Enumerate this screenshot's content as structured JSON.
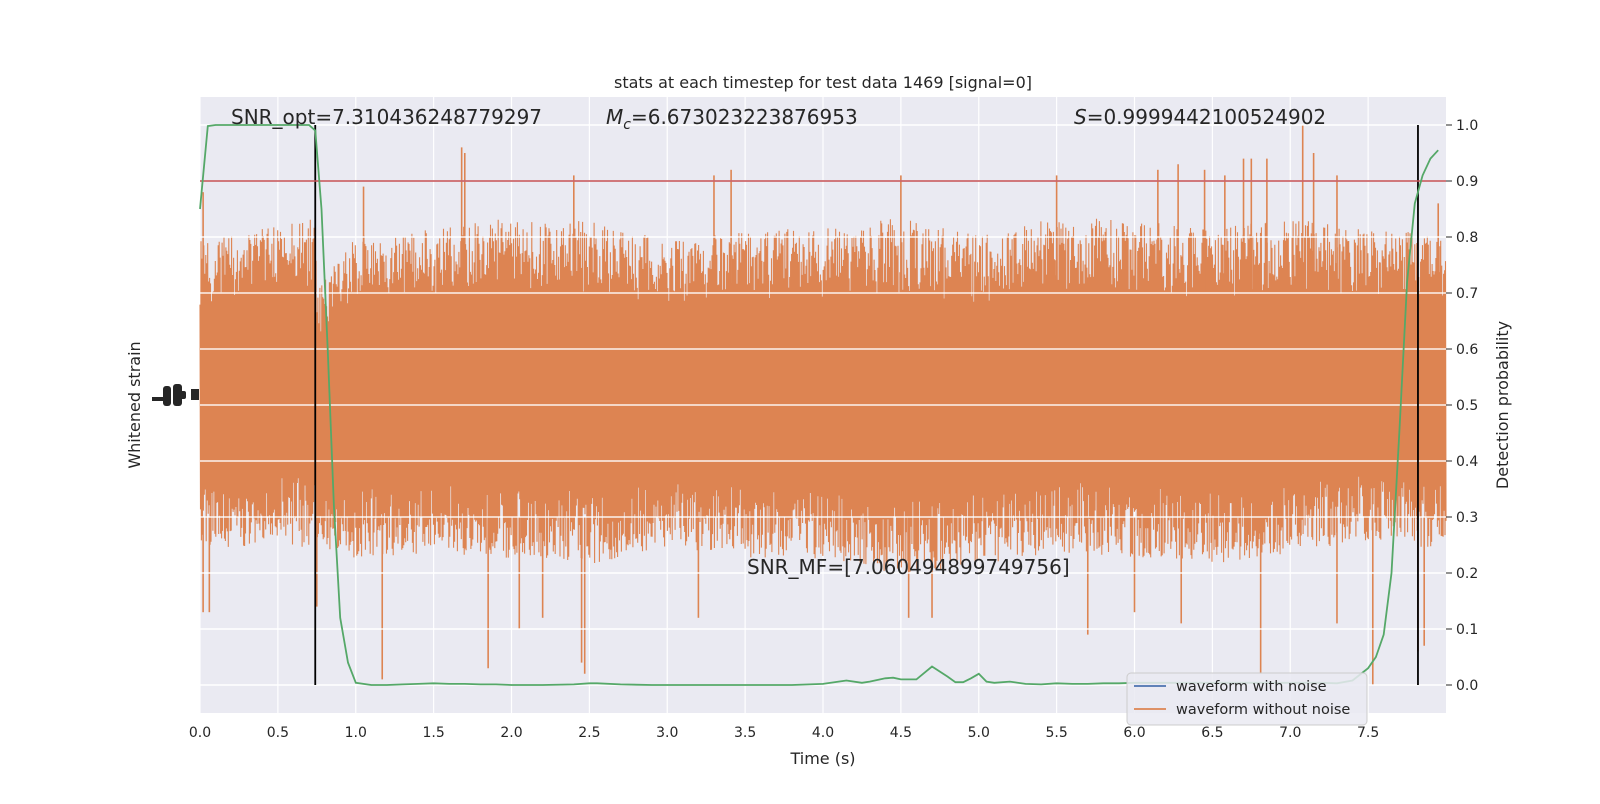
{
  "chart_data": {
    "type": "line",
    "title": "stats at each timestep for test data 1469 [signal=0]",
    "xlabel": "Time (s)",
    "ylabel_left": "Whitened strain",
    "ylabel_right": "Detection probability",
    "xlim": [
      0.0,
      8.0
    ],
    "ylim_right": [
      -0.05,
      1.05
    ],
    "x_ticks": [
      "0.0",
      "0.5",
      "1.0",
      "1.5",
      "2.0",
      "2.5",
      "3.0",
      "3.5",
      "4.0",
      "4.5",
      "5.0",
      "5.5",
      "6.0",
      "6.5",
      "7.0",
      "7.5"
    ],
    "y_ticks_right": [
      "0.0",
      "0.1",
      "0.2",
      "0.3",
      "0.4",
      "0.5",
      "0.6",
      "0.7",
      "0.8",
      "0.9",
      "1.0"
    ],
    "grid": true,
    "legend_position": "lower-right",
    "annotations": {
      "snr_opt": "SNR_opt=7.310436248779297",
      "mc_symbol": "M",
      "mc_sub": "c",
      "mc_value": "=6.673023223876953",
      "s_symbol": "S",
      "s_value": "=0.9999442100524902",
      "snr_mf": "SNR_MF=[7.060494899749756]"
    },
    "threshold": {
      "y": 0.9,
      "color": "#c44e52"
    },
    "vertical_markers": [
      0.74,
      7.82
    ],
    "series": [
      {
        "name": "waveform with noise",
        "color": "#4c72b0",
        "kind": "strain"
      },
      {
        "name": "waveform without noise",
        "color": "#dd8452",
        "kind": "strain",
        "envelope_upper": [
          [
            0.0,
            0.78
          ],
          [
            0.74,
            0.82
          ],
          [
            0.75,
            0.7
          ],
          [
            1.0,
            0.79
          ],
          [
            1.5,
            0.8
          ],
          [
            2.0,
            0.82
          ],
          [
            2.5,
            0.82
          ],
          [
            3.0,
            0.78
          ],
          [
            3.5,
            0.8
          ],
          [
            4.0,
            0.8
          ],
          [
            4.5,
            0.82
          ],
          [
            5.0,
            0.79
          ],
          [
            5.5,
            0.82
          ],
          [
            6.0,
            0.82
          ],
          [
            6.5,
            0.8
          ],
          [
            7.0,
            0.82
          ],
          [
            7.5,
            0.8
          ],
          [
            8.0,
            0.8
          ]
        ],
        "envelope_lower": [
          [
            0.0,
            0.25
          ],
          [
            0.5,
            0.27
          ],
          [
            1.0,
            0.24
          ],
          [
            1.5,
            0.25
          ],
          [
            2.0,
            0.24
          ],
          [
            2.5,
            0.23
          ],
          [
            3.0,
            0.26
          ],
          [
            3.5,
            0.24
          ],
          [
            4.0,
            0.24
          ],
          [
            4.5,
            0.21
          ],
          [
            5.0,
            0.23
          ],
          [
            5.5,
            0.25
          ],
          [
            6.0,
            0.24
          ],
          [
            6.5,
            0.23
          ],
          [
            7.0,
            0.25
          ],
          [
            7.5,
            0.27
          ],
          [
            8.0,
            0.25
          ]
        ],
        "spikes_up": [
          [
            0.02,
            0.88
          ],
          [
            1.05,
            0.89
          ],
          [
            1.68,
            0.96
          ],
          [
            1.7,
            0.95
          ],
          [
            2.4,
            0.91
          ],
          [
            3.3,
            0.91
          ],
          [
            3.41,
            0.92
          ],
          [
            4.5,
            0.91
          ],
          [
            5.5,
            0.91
          ],
          [
            6.15,
            0.92
          ],
          [
            6.28,
            0.93
          ],
          [
            6.45,
            0.92
          ],
          [
            6.58,
            0.91
          ],
          [
            6.7,
            0.94
          ],
          [
            6.75,
            0.94
          ],
          [
            6.85,
            0.94
          ],
          [
            7.08,
            1.0
          ],
          [
            7.15,
            0.95
          ],
          [
            7.3,
            0.91
          ],
          [
            7.95,
            0.86
          ]
        ],
        "spikes_down": [
          [
            0.02,
            0.13
          ],
          [
            0.06,
            0.13
          ],
          [
            0.75,
            0.14
          ],
          [
            1.17,
            0.01
          ],
          [
            1.85,
            0.03
          ],
          [
            2.05,
            0.1
          ],
          [
            2.2,
            0.12
          ],
          [
            2.45,
            0.04
          ],
          [
            2.47,
            0.02
          ],
          [
            3.2,
            0.12
          ],
          [
            4.55,
            0.12
          ],
          [
            4.7,
            0.12
          ],
          [
            5.7,
            0.09
          ],
          [
            6.0,
            0.13
          ],
          [
            6.3,
            0.11
          ],
          [
            6.81,
            0.02
          ],
          [
            7.3,
            0.11
          ],
          [
            7.53,
            0.0
          ],
          [
            7.82,
            0.06
          ],
          [
            7.86,
            0.07
          ]
        ]
      },
      {
        "name": "",
        "color": "#55a868",
        "kind": "probability",
        "x": [
          0.0,
          0.05,
          0.1,
          0.2,
          0.3,
          0.4,
          0.5,
          0.6,
          0.7,
          0.74,
          0.78,
          0.82,
          0.86,
          0.9,
          0.95,
          1.0,
          1.1,
          1.2,
          1.3,
          1.4,
          1.5,
          1.6,
          1.7,
          1.8,
          1.9,
          2.0,
          2.2,
          2.4,
          2.5,
          2.55,
          2.7,
          2.9,
          3.0,
          3.2,
          3.4,
          3.6,
          3.8,
          4.0,
          4.1,
          4.15,
          4.25,
          4.3,
          4.4,
          4.45,
          4.5,
          4.6,
          4.7,
          4.8,
          4.85,
          4.9,
          4.95,
          5.0,
          5.05,
          5.1,
          5.2,
          5.3,
          5.4,
          5.5,
          5.6,
          5.7,
          5.8,
          5.9,
          6.0,
          6.2,
          6.4,
          6.6,
          6.8,
          7.0,
          7.2,
          7.3,
          7.4,
          7.5,
          7.55,
          7.6,
          7.65,
          7.7,
          7.75,
          7.8,
          7.85,
          7.9,
          7.95
        ],
        "y": [
          0.85,
          0.998,
          1.0,
          1.0,
          1.0,
          1.0,
          1.0,
          1.0,
          1.0,
          0.99,
          0.85,
          0.6,
          0.32,
          0.12,
          0.04,
          0.004,
          0.0,
          0.0,
          0.001,
          0.002,
          0.003,
          0.002,
          0.002,
          0.001,
          0.001,
          0.0,
          0.0,
          0.001,
          0.003,
          0.003,
          0.001,
          0.0,
          0.0,
          0.0,
          0.0,
          0.0,
          0.0,
          0.002,
          0.006,
          0.008,
          0.004,
          0.006,
          0.012,
          0.013,
          0.01,
          0.01,
          0.033,
          0.015,
          0.005,
          0.005,
          0.012,
          0.02,
          0.006,
          0.004,
          0.006,
          0.002,
          0.001,
          0.003,
          0.002,
          0.002,
          0.003,
          0.003,
          0.004,
          0.004,
          0.004,
          0.004,
          0.004,
          0.004,
          0.004,
          0.003,
          0.008,
          0.03,
          0.05,
          0.09,
          0.2,
          0.45,
          0.72,
          0.86,
          0.91,
          0.94,
          0.955
        ]
      }
    ]
  }
}
